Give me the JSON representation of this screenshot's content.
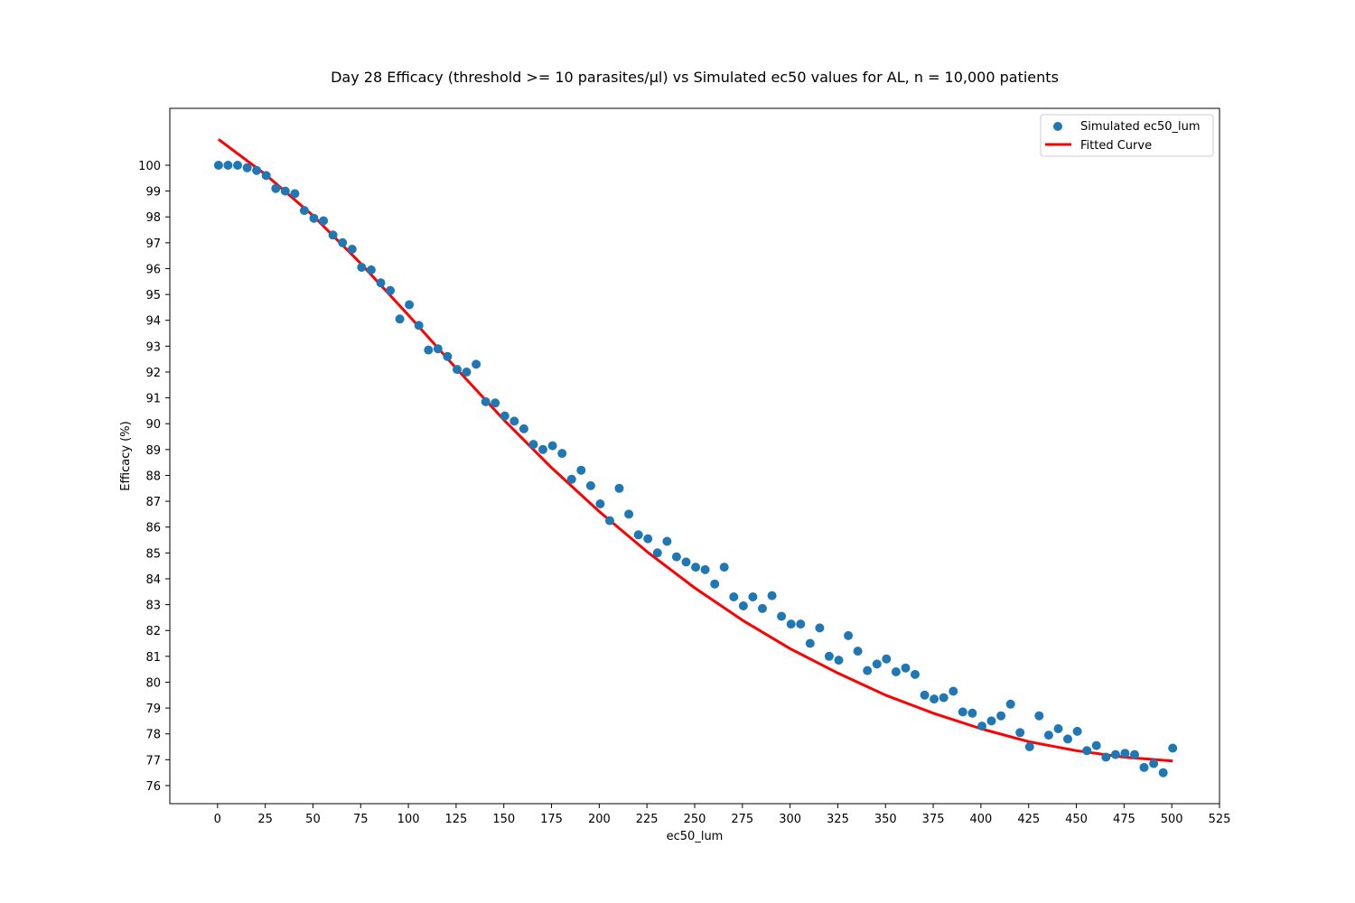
{
  "chart_data": {
    "type": "scatter",
    "title": "Day 28 Efficacy (threshold >= 10 parasites/µl) vs Simulated ec50 values for AL, n = 10,000 patients",
    "xlabel": "ec50_lum",
    "ylabel": "Efficacy (%)",
    "xlim": [
      -25,
      525
    ],
    "ylim": [
      75.3,
      102.2
    ],
    "xticks": [
      0,
      25,
      50,
      75,
      100,
      125,
      150,
      175,
      200,
      225,
      250,
      275,
      300,
      325,
      350,
      375,
      400,
      425,
      450,
      475,
      500,
      525
    ],
    "yticks": [
      76,
      77,
      78,
      79,
      80,
      81,
      82,
      83,
      84,
      85,
      86,
      87,
      88,
      89,
      90,
      91,
      92,
      93,
      94,
      95,
      96,
      97,
      98,
      99,
      100
    ],
    "legend_position": "top-right",
    "grid": false,
    "series": [
      {
        "name": "Simulated ec50_lum",
        "kind": "scatter",
        "color": "#1f77b4",
        "x": [
          0.5,
          5.5,
          10.5,
          15.5,
          20.5,
          25.5,
          30.5,
          35.5,
          40.5,
          45.5,
          50.5,
          55.5,
          60.5,
          65.5,
          70.5,
          75.5,
          80.5,
          85.5,
          90.5,
          95.5,
          100.5,
          105.5,
          110.5,
          115.5,
          120.5,
          125.5,
          130.5,
          135.5,
          140.5,
          145.5,
          150.5,
          155.5,
          160.5,
          165.5,
          170.5,
          175.5,
          180.5,
          185.5,
          190.5,
          195.5,
          200.5,
          205.5,
          210.5,
          215.5,
          220.5,
          225.5,
          230.5,
          235.5,
          240.5,
          245.5,
          250.5,
          255.5,
          260.5,
          265.5,
          270.5,
          275.5,
          280.5,
          285.5,
          290.5,
          295.5,
          300.5,
          305.5,
          310.5,
          315.5,
          320.5,
          325.5,
          330.5,
          335.5,
          340.5,
          345.5,
          350.5,
          355.5,
          360.5,
          365.5,
          370.5,
          375.5,
          380.5,
          385.5,
          390.5,
          395.5,
          400.5,
          405.5,
          410.5,
          415.5,
          420.5,
          425.5,
          430.5,
          435.5,
          440.5,
          445.5,
          450.5,
          455.5,
          460.5,
          465.5,
          470.5,
          475.5,
          480.5,
          485.5,
          490.5,
          495.5,
          500.5
        ],
        "y": [
          100.0,
          100.0,
          100.0,
          99.9,
          99.8,
          99.6,
          99.1,
          99.0,
          98.9,
          98.25,
          97.95,
          97.85,
          97.3,
          97.0,
          96.75,
          96.05,
          95.95,
          95.45,
          95.15,
          94.05,
          94.6,
          93.8,
          92.85,
          92.9,
          92.6,
          92.1,
          92.0,
          92.3,
          90.85,
          90.8,
          90.3,
          90.1,
          89.8,
          89.2,
          89.0,
          89.15,
          88.85,
          87.85,
          88.2,
          87.6,
          86.9,
          86.25,
          87.5,
          86.5,
          85.7,
          85.55,
          85.0,
          85.45,
          84.85,
          84.65,
          84.45,
          84.35,
          83.8,
          84.45,
          83.3,
          82.95,
          83.3,
          82.85,
          83.35,
          82.55,
          82.25,
          82.25,
          81.5,
          82.1,
          81.0,
          80.85,
          81.8,
          81.2,
          80.45,
          80.7,
          80.9,
          80.4,
          80.55,
          80.3,
          79.5,
          79.35,
          79.4,
          79.65,
          78.85,
          78.8,
          78.3,
          78.5,
          78.7,
          79.15,
          78.05,
          77.5,
          78.7,
          77.95,
          78.2,
          77.8,
          78.1,
          77.35,
          77.55,
          77.1,
          77.2,
          77.25,
          77.2,
          76.7,
          76.85,
          76.5,
          77.45
        ]
      },
      {
        "name": "Fitted Curve",
        "kind": "line",
        "color": "#ff0000",
        "x": [
          0.5,
          25,
          50,
          75,
          100,
          125,
          150,
          175,
          200,
          225,
          250,
          275,
          300,
          325,
          350,
          375,
          400,
          425,
          450,
          475,
          500.5
        ],
        "y": [
          101.0,
          99.65,
          98.05,
          96.2,
          94.2,
          92.15,
          90.15,
          88.3,
          86.6,
          85.05,
          83.65,
          82.4,
          81.3,
          80.35,
          79.5,
          78.8,
          78.2,
          77.7,
          77.35,
          77.1,
          76.95
        ]
      }
    ]
  }
}
